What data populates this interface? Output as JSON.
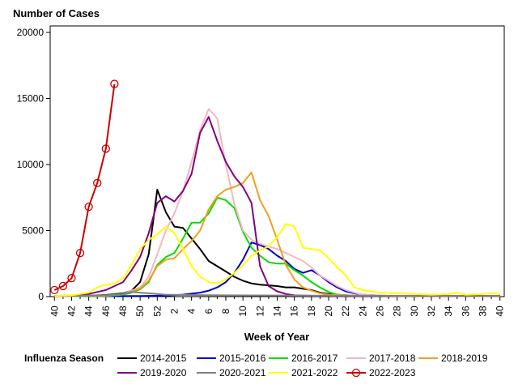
{
  "chart_data": {
    "type": "line",
    "title": "Number of Cases",
    "xlabel": "Week of Year",
    "ylabel": "",
    "ylim": [
      0,
      20000
    ],
    "yticks": [
      0,
      5000,
      10000,
      15000,
      20000
    ],
    "ytick_labels": [
      "0",
      "5000",
      "10000",
      "15000",
      "20000"
    ],
    "xticks": [
      "40",
      "42",
      "44",
      "46",
      "48",
      "50",
      "52",
      "2",
      "4",
      "6",
      "8",
      "10",
      "12",
      "14",
      "16",
      "18",
      "20",
      "22",
      "24",
      "26",
      "28",
      "30",
      "32",
      "34",
      "36",
      "38",
      "40"
    ],
    "legend_title": "Influenza Season",
    "legend_position": "bottom",
    "series": [
      {
        "name": "2014-2015",
        "color": "#000000",
        "marker": "none",
        "points": [
          [
            40,
            50
          ],
          [
            42,
            60
          ],
          [
            44,
            80
          ],
          [
            46,
            120
          ],
          [
            48,
            250
          ],
          [
            49,
            450
          ],
          [
            50,
            1100
          ],
          [
            51,
            3200
          ],
          [
            51.5,
            5600
          ],
          [
            52,
            8100
          ],
          [
            53,
            6400
          ],
          [
            54,
            5300
          ],
          [
            55,
            5200
          ],
          [
            56,
            4400
          ],
          [
            57,
            3600
          ],
          [
            58,
            2700
          ],
          [
            59,
            2300
          ],
          [
            60,
            1900
          ],
          [
            61,
            1500
          ],
          [
            62,
            1200
          ],
          [
            63,
            1000
          ],
          [
            64,
            900
          ],
          [
            65,
            850
          ],
          [
            66,
            800
          ],
          [
            67,
            700
          ],
          [
            68,
            700
          ],
          [
            69,
            600
          ],
          [
            70,
            500
          ],
          [
            71,
            300
          ],
          [
            72,
            200
          ],
          [
            73,
            150
          ],
          [
            74,
            100
          ],
          [
            75,
            50
          ],
          [
            79,
            50
          ],
          [
            92,
            50
          ]
        ]
      },
      {
        "name": "2015-2016",
        "color": "#0000cc",
        "marker": "none",
        "points": [
          [
            40,
            30
          ],
          [
            50,
            50
          ],
          [
            53,
            80
          ],
          [
            55,
            150
          ],
          [
            57,
            300
          ],
          [
            58,
            450
          ],
          [
            59,
            700
          ],
          [
            60,
            1100
          ],
          [
            61,
            1800
          ],
          [
            62,
            2800
          ],
          [
            63,
            4100
          ],
          [
            64,
            3900
          ],
          [
            65,
            3600
          ],
          [
            66,
            3100
          ],
          [
            67,
            2700
          ],
          [
            68,
            2100
          ],
          [
            69,
            1800
          ],
          [
            70,
            2000
          ],
          [
            71,
            1600
          ],
          [
            72,
            1100
          ],
          [
            73,
            700
          ],
          [
            74,
            400
          ],
          [
            75,
            250
          ],
          [
            76,
            150
          ],
          [
            78,
            80
          ],
          [
            80,
            50
          ],
          [
            92,
            50
          ]
        ]
      },
      {
        "name": "2016-2017",
        "color": "#00dd00",
        "marker": "none",
        "points": [
          [
            40,
            30
          ],
          [
            46,
            50
          ],
          [
            48,
            150
          ],
          [
            49,
            300
          ],
          [
            50,
            550
          ],
          [
            51,
            1100
          ],
          [
            52,
            2400
          ],
          [
            53,
            3000
          ],
          [
            54,
            3300
          ],
          [
            55,
            4400
          ],
          [
            56,
            5600
          ],
          [
            57,
            5600
          ],
          [
            58,
            6300
          ],
          [
            59,
            7500
          ],
          [
            60,
            7300
          ],
          [
            61,
            6700
          ],
          [
            62,
            4900
          ],
          [
            63,
            3700
          ],
          [
            64,
            3100
          ],
          [
            65,
            2600
          ],
          [
            66,
            2500
          ],
          [
            67,
            2500
          ],
          [
            68,
            2000
          ],
          [
            69,
            1600
          ],
          [
            70,
            1100
          ],
          [
            71,
            700
          ],
          [
            72,
            350
          ],
          [
            73,
            150
          ],
          [
            75,
            80
          ],
          [
            80,
            50
          ],
          [
            92,
            50
          ]
        ]
      },
      {
        "name": "2017-2018",
        "color": "#f4b6c2",
        "marker": "none",
        "points": [
          [
            40,
            30
          ],
          [
            46,
            80
          ],
          [
            48,
            200
          ],
          [
            50,
            700
          ],
          [
            51,
            1500
          ],
          [
            52,
            3200
          ],
          [
            53,
            5000
          ],
          [
            54,
            6300
          ],
          [
            55,
            8000
          ],
          [
            56,
            10200
          ],
          [
            57,
            12600
          ],
          [
            58,
            14200
          ],
          [
            59,
            13500
          ],
          [
            60,
            10000
          ],
          [
            61,
            7000
          ],
          [
            62,
            5000
          ],
          [
            63,
            4300
          ],
          [
            64,
            4000
          ],
          [
            65,
            3800
          ],
          [
            66,
            3600
          ],
          [
            67,
            3300
          ],
          [
            68,
            3000
          ],
          [
            69,
            2700
          ],
          [
            70,
            2200
          ],
          [
            71,
            1600
          ],
          [
            72,
            1200
          ],
          [
            73,
            800
          ],
          [
            74,
            500
          ],
          [
            75,
            300
          ],
          [
            76,
            150
          ],
          [
            78,
            80
          ],
          [
            80,
            50
          ],
          [
            92,
            50
          ]
        ]
      },
      {
        "name": "2018-2019",
        "color": "#f0a020",
        "marker": "none",
        "points": [
          [
            40,
            30
          ],
          [
            46,
            80
          ],
          [
            48,
            200
          ],
          [
            50,
            600
          ],
          [
            51,
            1200
          ],
          [
            52,
            2300
          ],
          [
            53,
            2800
          ],
          [
            54,
            2900
          ],
          [
            55,
            3600
          ],
          [
            56,
            4200
          ],
          [
            57,
            5000
          ],
          [
            58,
            6600
          ],
          [
            59,
            7600
          ],
          [
            60,
            8100
          ],
          [
            61,
            8300
          ],
          [
            62,
            8600
          ],
          [
            63,
            9400
          ],
          [
            64,
            7300
          ],
          [
            65,
            6100
          ],
          [
            66,
            4300
          ],
          [
            67,
            2400
          ],
          [
            68,
            1300
          ],
          [
            69,
            700
          ],
          [
            70,
            450
          ],
          [
            71,
            250
          ],
          [
            72,
            150
          ],
          [
            74,
            100
          ],
          [
            76,
            80
          ],
          [
            80,
            50
          ],
          [
            92,
            50
          ]
        ]
      },
      {
        "name": "2019-2020",
        "color": "#800080",
        "marker": "none",
        "points": [
          [
            40,
            30
          ],
          [
            42,
            100
          ],
          [
            44,
            200
          ],
          [
            45,
            350
          ],
          [
            46,
            500
          ],
          [
            47,
            800
          ],
          [
            48,
            1100
          ],
          [
            49,
            2000
          ],
          [
            50,
            3000
          ],
          [
            51,
            4800
          ],
          [
            52,
            7100
          ],
          [
            53,
            7600
          ],
          [
            54,
            7200
          ],
          [
            55,
            8000
          ],
          [
            56,
            9300
          ],
          [
            57,
            12400
          ],
          [
            58,
            13600
          ],
          [
            59,
            11800
          ],
          [
            60,
            10200
          ],
          [
            61,
            9100
          ],
          [
            62,
            8300
          ],
          [
            63,
            7100
          ],
          [
            64,
            2300
          ],
          [
            65,
            800
          ],
          [
            66,
            400
          ],
          [
            67,
            200
          ],
          [
            68,
            100
          ],
          [
            70,
            60
          ],
          [
            75,
            50
          ],
          [
            92,
            50
          ]
        ]
      },
      {
        "name": "2020-2021",
        "color": "#808080",
        "marker": "none",
        "points": [
          [
            40,
            50
          ],
          [
            44,
            80
          ],
          [
            46,
            100
          ],
          [
            48,
            200
          ],
          [
            49,
            350
          ],
          [
            50,
            300
          ],
          [
            51,
            250
          ],
          [
            52,
            200
          ],
          [
            53,
            150
          ],
          [
            55,
            120
          ],
          [
            60,
            100
          ],
          [
            70,
            80
          ],
          [
            80,
            60
          ],
          [
            92,
            50
          ]
        ]
      },
      {
        "name": "2021-2022",
        "color": "#ffff00",
        "marker": "none",
        "points": [
          [
            40,
            50
          ],
          [
            42,
            100
          ],
          [
            44,
            300
          ],
          [
            45,
            700
          ],
          [
            46,
            900
          ],
          [
            47,
            1000
          ],
          [
            48,
            1400
          ],
          [
            49,
            2400
          ],
          [
            50,
            3600
          ],
          [
            51,
            4300
          ],
          [
            52,
            4700
          ],
          [
            53,
            5300
          ],
          [
            54,
            4800
          ],
          [
            55,
            3600
          ],
          [
            56,
            2300
          ],
          [
            57,
            1500
          ],
          [
            58,
            1100
          ],
          [
            59,
            1000
          ],
          [
            60,
            1300
          ],
          [
            61,
            1800
          ],
          [
            62,
            2400
          ],
          [
            63,
            3100
          ],
          [
            64,
            3500
          ],
          [
            65,
            3800
          ],
          [
            66,
            4500
          ],
          [
            67,
            5500
          ],
          [
            68,
            5300
          ],
          [
            69,
            3700
          ],
          [
            70,
            3600
          ],
          [
            71,
            3500
          ],
          [
            72,
            2900
          ],
          [
            73,
            2200
          ],
          [
            74,
            1600
          ],
          [
            75,
            700
          ],
          [
            76,
            500
          ],
          [
            77,
            400
          ],
          [
            78,
            300
          ],
          [
            80,
            250
          ],
          [
            82,
            200
          ],
          [
            84,
            150
          ],
          [
            86,
            200
          ],
          [
            87,
            300
          ],
          [
            88,
            150
          ],
          [
            90,
            200
          ],
          [
            91,
            250
          ],
          [
            92,
            200
          ]
        ]
      },
      {
        "name": "2022-2023",
        "color": "#cc0000",
        "marker": "circle",
        "points": [
          [
            40,
            500
          ],
          [
            41,
            800
          ],
          [
            42,
            1400
          ],
          [
            43,
            3300
          ],
          [
            44,
            6800
          ],
          [
            45,
            8600
          ],
          [
            46,
            11200
          ],
          [
            47,
            16100
          ]
        ]
      }
    ]
  }
}
